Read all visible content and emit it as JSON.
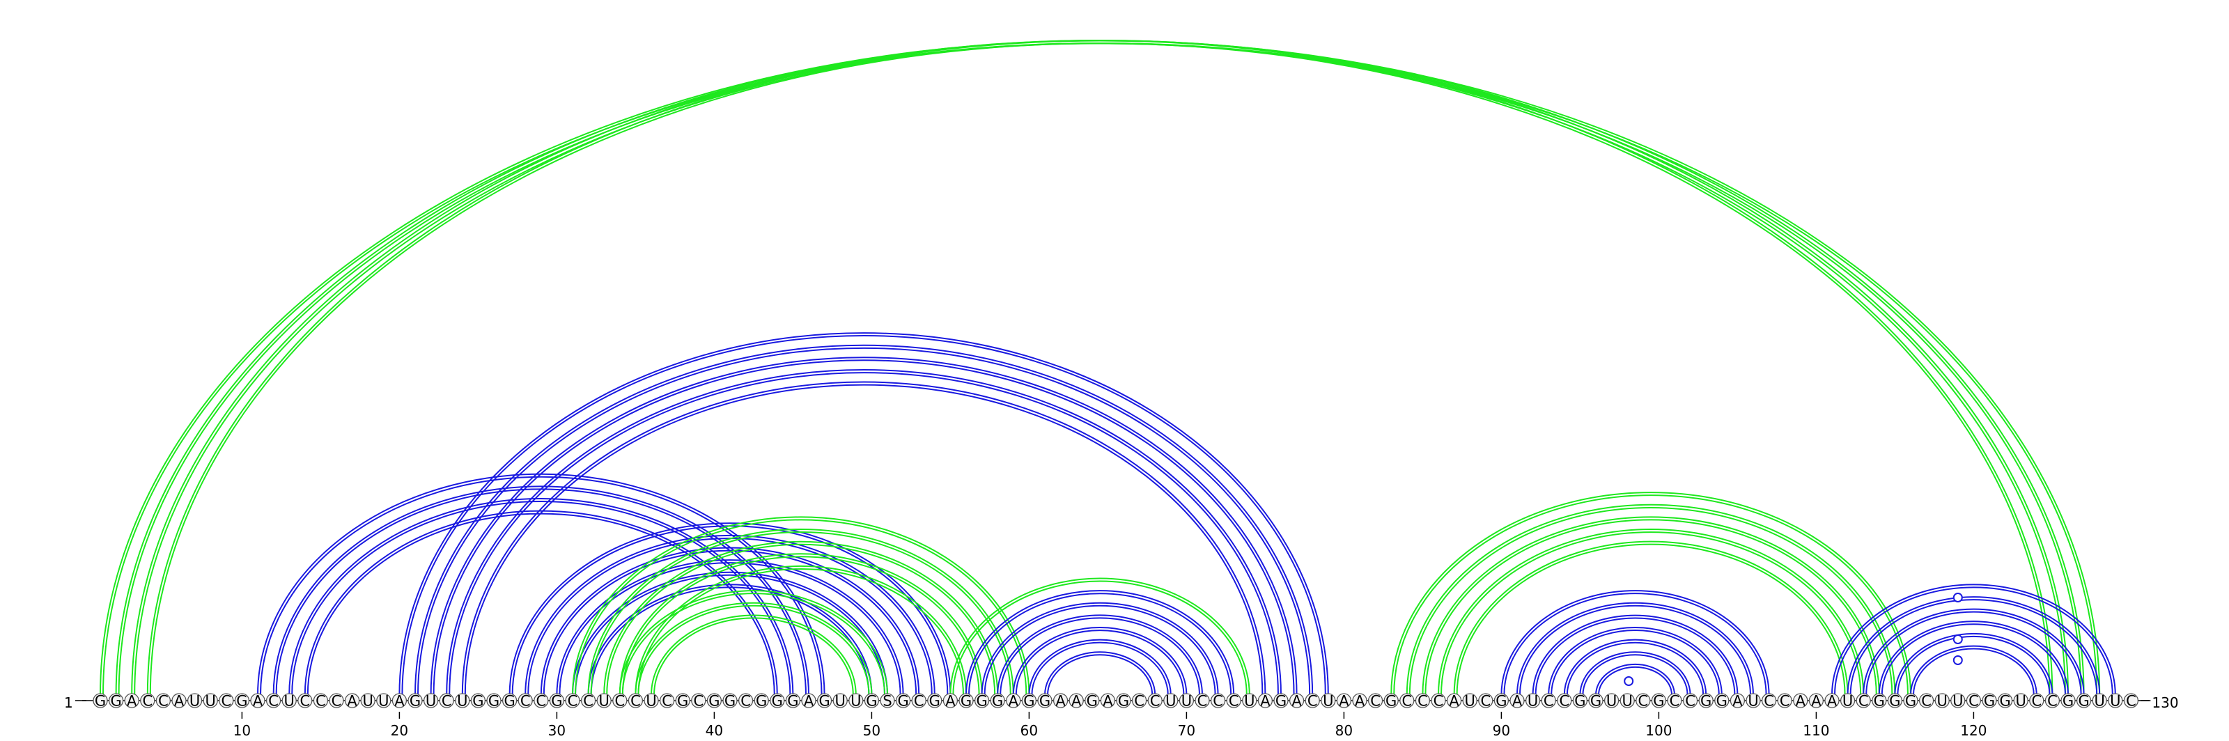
{
  "sequence": "GGACCAUUCGACUCCCAUUAGUCUGGGCCGCCUCCUCGCGGCGGGAGUUGSGCGAGGGAGGAAGAGCCUUCCCUAGACUAACGCCCAUCGAUCCGGUUCGCCGGAUCCAAAUCGGGCUUCGGUCCGGUUC",
  "start_label": "1",
  "end_label": "130",
  "ticks": [
    "10",
    "20",
    "30",
    "40",
    "50",
    "60",
    "70",
    "80",
    "90",
    "100",
    "110",
    "120"
  ],
  "colors": {
    "green": "#1ee81e",
    "blue": "#1a1ae0"
  },
  "arc_groups": [
    {
      "color": "green",
      "i": 1,
      "j": 128,
      "count": 4
    },
    {
      "color": "blue",
      "i": 11,
      "j": 47,
      "count": 4
    },
    {
      "color": "blue",
      "i": 20,
      "j": 79,
      "count": 5
    },
    {
      "color": "blue",
      "i": 27,
      "j": 55,
      "count": 6
    },
    {
      "color": "green",
      "i": 31,
      "j": 60,
      "count": 5
    },
    {
      "color": "green",
      "i": 34,
      "j": 51,
      "count": 3
    },
    {
      "color": "blue",
      "i": 56,
      "j": 73,
      "count": 6
    },
    {
      "color": "green",
      "i": 55,
      "j": 74,
      "count": 1
    },
    {
      "color": "green",
      "i": 83,
      "j": 116,
      "count": 5
    },
    {
      "color": "blue",
      "i": 90,
      "j": 107,
      "count": 7
    },
    {
      "color": "blue",
      "i": 111,
      "j": 129,
      "count": 6
    }
  ],
  "markers": [
    98,
    119
  ]
}
